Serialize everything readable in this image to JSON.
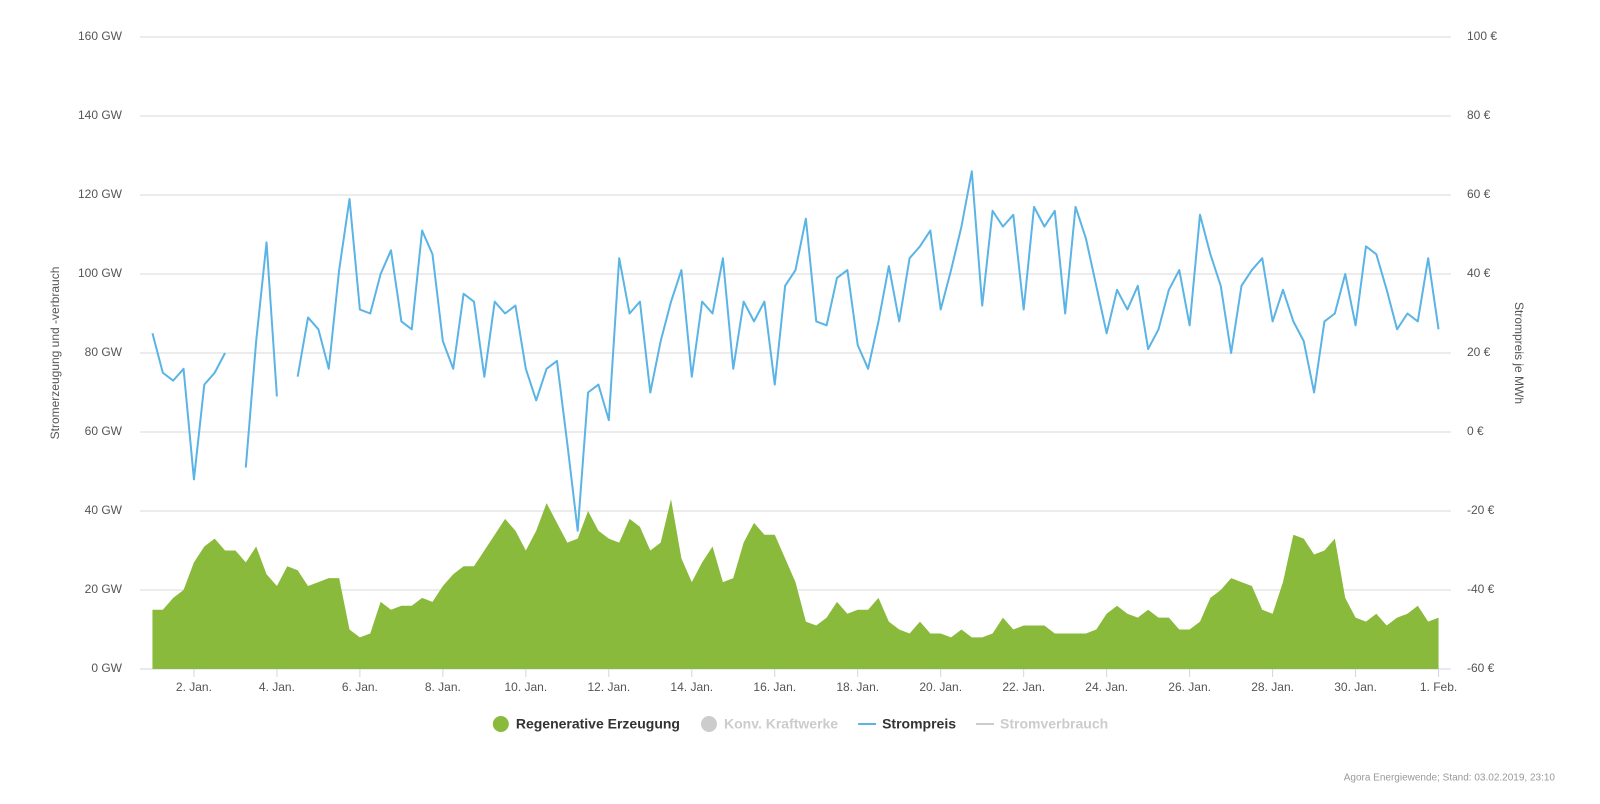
{
  "chart_data": {
    "type": "area-line",
    "ylabel": "Stromerzeugung und -verbrauch",
    "y2label": "Strompreis je MWh",
    "credit": "Agora Energiewende; Stand: 03.02.2019, 23:10",
    "grid": true,
    "xlim": [
      0.7,
      32.3
    ],
    "ylim": [
      0,
      160
    ],
    "y2lim": [
      -60,
      100
    ],
    "xticks": [
      {
        "value": 2,
        "label": "2. Jan."
      },
      {
        "value": 4,
        "label": "4. Jan."
      },
      {
        "value": 6,
        "label": "6. Jan."
      },
      {
        "value": 8,
        "label": "8. Jan."
      },
      {
        "value": 10,
        "label": "10. Jan."
      },
      {
        "value": 12,
        "label": "12. Jan."
      },
      {
        "value": 14,
        "label": "14. Jan."
      },
      {
        "value": 16,
        "label": "16. Jan."
      },
      {
        "value": 18,
        "label": "18. Jan."
      },
      {
        "value": 20,
        "label": "20. Jan."
      },
      {
        "value": 22,
        "label": "22. Jan."
      },
      {
        "value": 24,
        "label": "24. Jan."
      },
      {
        "value": 26,
        "label": "26. Jan."
      },
      {
        "value": 28,
        "label": "28. Jan."
      },
      {
        "value": 30,
        "label": "30. Jan."
      },
      {
        "value": 32,
        "label": "1. Feb."
      }
    ],
    "yticks": [
      {
        "value": 0,
        "label": "0 GW"
      },
      {
        "value": 20,
        "label": "20 GW"
      },
      {
        "value": 40,
        "label": "40 GW"
      },
      {
        "value": 60,
        "label": "60 GW"
      },
      {
        "value": 80,
        "label": "80 GW"
      },
      {
        "value": 100,
        "label": "100 GW"
      },
      {
        "value": 120,
        "label": "120 GW"
      },
      {
        "value": 140,
        "label": "140 GW"
      },
      {
        "value": 160,
        "label": "160 GW"
      }
    ],
    "y2ticks": [
      {
        "value": -60,
        "label": "-60 €"
      },
      {
        "value": -40,
        "label": "-40 €"
      },
      {
        "value": -20,
        "label": "-20 €"
      },
      {
        "value": 0,
        "label": "0 €"
      },
      {
        "value": 20,
        "label": "20 €"
      },
      {
        "value": 40,
        "label": "40 €"
      },
      {
        "value": 60,
        "label": "60 €"
      },
      {
        "value": 80,
        "label": "80 €"
      },
      {
        "value": 100,
        "label": "100 €"
      }
    ],
    "x": [
      1,
      1.25,
      1.5,
      1.75,
      2,
      2.25,
      2.5,
      2.75,
      3,
      3.25,
      3.5,
      3.75,
      4,
      4.25,
      4.5,
      4.75,
      5,
      5.25,
      5.5,
      5.75,
      6,
      6.25,
      6.5,
      6.75,
      7,
      7.25,
      7.5,
      7.75,
      8,
      8.25,
      8.5,
      8.75,
      9,
      9.25,
      9.5,
      9.75,
      10,
      10.25,
      10.5,
      10.75,
      11,
      11.25,
      11.5,
      11.75,
      12,
      12.25,
      12.5,
      12.75,
      13,
      13.25,
      13.5,
      13.75,
      14,
      14.25,
      14.5,
      14.75,
      15,
      15.25,
      15.5,
      15.75,
      16,
      16.25,
      16.5,
      16.75,
      17,
      17.25,
      17.5,
      17.75,
      18,
      18.25,
      18.5,
      18.75,
      19,
      19.25,
      19.5,
      19.75,
      20,
      20.25,
      20.5,
      20.75,
      21,
      21.25,
      21.5,
      21.75,
      22,
      22.25,
      22.5,
      22.75,
      23,
      23.25,
      23.5,
      23.75,
      24,
      24.25,
      24.5,
      24.75,
      25,
      25.25,
      25.5,
      25.75,
      26,
      26.25,
      26.5,
      26.75,
      27,
      27.25,
      27.5,
      27.75,
      28,
      28.25,
      28.5,
      28.75,
      29,
      29.25,
      29.5,
      29.75,
      30,
      30.25,
      30.5,
      30.75,
      31,
      31.25,
      31.5,
      31.75,
      32
    ],
    "series": [
      {
        "name": "Regenerative Erzeugung",
        "type": "area",
        "color": "#8aba3c",
        "visible": true,
        "values": [
          15,
          15,
          18,
          20,
          27,
          31,
          33,
          30,
          30,
          27,
          31,
          24,
          21,
          26,
          25,
          21,
          22,
          23,
          23,
          10,
          8,
          9,
          17,
          15,
          16,
          16,
          18,
          17,
          21,
          24,
          26,
          26,
          30,
          34,
          38,
          35,
          30,
          35,
          42,
          37,
          32,
          33,
          40,
          35,
          33,
          32,
          38,
          36,
          30,
          32,
          43,
          28,
          22,
          27,
          31,
          22,
          23,
          32,
          37,
          34,
          34,
          28,
          22,
          12,
          11,
          13,
          17,
          14,
          15,
          15,
          18,
          12,
          10,
          9,
          12,
          9,
          9,
          8,
          10,
          8,
          8,
          9,
          13,
          10,
          11,
          11,
          11,
          9,
          9,
          9,
          9,
          10,
          14,
          16,
          14,
          13,
          15,
          13,
          13,
          10,
          10,
          12,
          18,
          20,
          23,
          22,
          21,
          15,
          14,
          22,
          34,
          33,
          29,
          30,
          33,
          18,
          13,
          12,
          14,
          11,
          13,
          14,
          16,
          12,
          13
        ]
      },
      {
        "name": "Konv. Kraftwerke",
        "type": "area",
        "color": "#cccccc",
        "visible": false
      },
      {
        "name": "Strompreis",
        "type": "line",
        "axis": "y2",
        "color": "#5ab4e5",
        "visible": true,
        "values": [
          25,
          15,
          13,
          16,
          -12,
          12,
          15,
          20,
          null,
          -9,
          23,
          48,
          9,
          null,
          14,
          29,
          26,
          16,
          41,
          59,
          31,
          30,
          40,
          46,
          28,
          26,
          51,
          45,
          23,
          16,
          35,
          33,
          14,
          33,
          30,
          32,
          16,
          8,
          16,
          18,
          -3,
          -25,
          10,
          12,
          3,
          44,
          30,
          33,
          10,
          23,
          33,
          41,
          14,
          33,
          30,
          44,
          16,
          33,
          28,
          33,
          12,
          37,
          41,
          54,
          28,
          27,
          39,
          41,
          22,
          16,
          28,
          42,
          28,
          44,
          47,
          51,
          31,
          41,
          52,
          66,
          32,
          56,
          52,
          55,
          31,
          57,
          52,
          56,
          30,
          57,
          49,
          37,
          25,
          36,
          31,
          37,
          21,
          26,
          36,
          41,
          27,
          55,
          45,
          37,
          20,
          37,
          41,
          44,
          28,
          36,
          28,
          23,
          10,
          28,
          30,
          40,
          27,
          47,
          45,
          36,
          26,
          30,
          28,
          44,
          26
        ]
      },
      {
        "name": "Stromverbrauch",
        "type": "line",
        "color": "#cccccc",
        "visible": false
      }
    ]
  }
}
